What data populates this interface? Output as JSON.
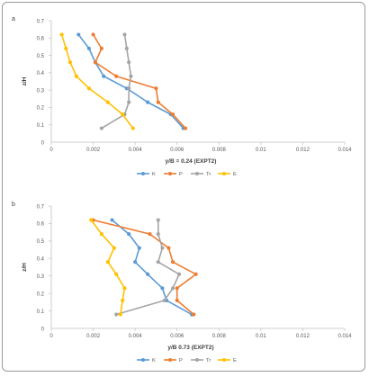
{
  "colors": {
    "K": "#5B9BD5",
    "P": "#ED7D31",
    "Tr": "#A5A5A5",
    "E": "#FFC000"
  },
  "chart_data": [
    {
      "panel": "a",
      "type": "line",
      "xlabel": "y/B = 0.24 (EXPT2)",
      "ylabel": "z/H",
      "xlim": [
        0,
        0.014
      ],
      "ylim": [
        0,
        0.7
      ],
      "x_ticks": [
        "0",
        "0.002",
        "0.004",
        "0.006",
        "0.008",
        "0.01",
        "0.012",
        "0.014"
      ],
      "y_ticks": [
        "0",
        "0.1",
        "0.2",
        "0.3",
        "0.4",
        "0.5",
        "0.6",
        "0.7"
      ],
      "legend_position": "bottom",
      "series": [
        {
          "name": "K",
          "points": [
            [
              0.0013,
              0.62
            ],
            [
              0.0018,
              0.54
            ],
            [
              0.0021,
              0.46
            ],
            [
              0.0025,
              0.38
            ],
            [
              0.0036,
              0.31
            ],
            [
              0.0046,
              0.23
            ],
            [
              0.0057,
              0.16
            ],
            [
              0.0063,
              0.08
            ]
          ]
        },
        {
          "name": "P",
          "points": [
            [
              0.002,
              0.62
            ],
            [
              0.0024,
              0.54
            ],
            [
              0.0021,
              0.46
            ],
            [
              0.0031,
              0.38
            ],
            [
              0.005,
              0.31
            ],
            [
              0.0051,
              0.23
            ],
            [
              0.0058,
              0.16
            ],
            [
              0.0064,
              0.08
            ]
          ]
        },
        {
          "name": "Tr",
          "points": [
            [
              0.0035,
              0.62
            ],
            [
              0.0036,
              0.54
            ],
            [
              0.0037,
              0.46
            ],
            [
              0.0038,
              0.38
            ],
            [
              0.0037,
              0.31
            ],
            [
              0.0037,
              0.23
            ],
            [
              0.0035,
              0.16
            ],
            [
              0.0024,
              0.08
            ]
          ]
        },
        {
          "name": "E",
          "points": [
            [
              0.0005,
              0.62
            ],
            [
              0.0007,
              0.54
            ],
            [
              0.0009,
              0.46
            ],
            [
              0.0012,
              0.38
            ],
            [
              0.0018,
              0.31
            ],
            [
              0.0027,
              0.23
            ],
            [
              0.0034,
              0.16
            ],
            [
              0.0039,
              0.08
            ]
          ]
        }
      ]
    },
    {
      "panel": "b",
      "type": "line",
      "xlabel": "y/B 0.73 (EXPT2)",
      "ylabel": "z/H",
      "xlim": [
        0,
        0.014
      ],
      "ylim": [
        0,
        0.7
      ],
      "x_ticks": [
        "0",
        "0.002",
        "0.004",
        "0.006",
        "0.008",
        "0.01",
        "0.012",
        "0.014"
      ],
      "y_ticks": [
        "0",
        "0.1",
        "0.2",
        "0.3",
        "0.4",
        "0.5",
        "0.6",
        "0.7"
      ],
      "legend_position": "bottom",
      "series": [
        {
          "name": "K",
          "points": [
            [
              0.0029,
              0.62
            ],
            [
              0.0037,
              0.54
            ],
            [
              0.0042,
              0.46
            ],
            [
              0.004,
              0.38
            ],
            [
              0.0046,
              0.31
            ],
            [
              0.0053,
              0.23
            ],
            [
              0.0055,
              0.16
            ],
            [
              0.0067,
              0.08
            ]
          ]
        },
        {
          "name": "P",
          "points": [
            [
              0.002,
              0.62
            ],
            [
              0.0047,
              0.54
            ],
            [
              0.0056,
              0.46
            ],
            [
              0.0058,
              0.38
            ],
            [
              0.0069,
              0.31
            ],
            [
              0.006,
              0.23
            ],
            [
              0.006,
              0.16
            ],
            [
              0.0068,
              0.08
            ]
          ]
        },
        {
          "name": "Tr",
          "points": [
            [
              0.0051,
              0.62
            ],
            [
              0.0051,
              0.54
            ],
            [
              0.0053,
              0.46
            ],
            [
              0.0051,
              0.38
            ],
            [
              0.0061,
              0.31
            ],
            [
              0.0058,
              0.23
            ],
            [
              0.0054,
              0.16
            ],
            [
              0.0031,
              0.08
            ]
          ]
        },
        {
          "name": "E",
          "points": [
            [
              0.0019,
              0.62
            ],
            [
              0.0024,
              0.54
            ],
            [
              0.003,
              0.46
            ],
            [
              0.0027,
              0.38
            ],
            [
              0.0031,
              0.31
            ],
            [
              0.0035,
              0.23
            ],
            [
              0.0034,
              0.16
            ],
            [
              0.0033,
              0.08
            ]
          ]
        }
      ]
    }
  ]
}
